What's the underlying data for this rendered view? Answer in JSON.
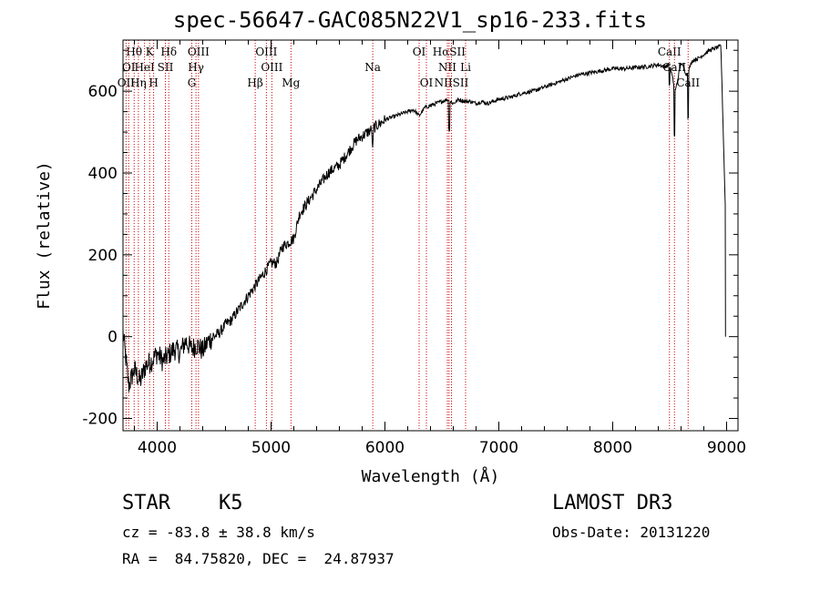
{
  "chart_data": {
    "type": "line",
    "title": "spec-56647-GAC085N22V1_sp16-233.fits",
    "xlabel": "Wavelength (Å)",
    "ylabel": "Flux (relative)",
    "xlim": [
      3700,
      9100
    ],
    "ylim": [
      -230,
      725
    ],
    "xticks": [
      4000,
      5000,
      6000,
      7000,
      8000,
      9000
    ],
    "yticks": [
      -200,
      0,
      200,
      400,
      600
    ],
    "series": [
      {
        "name": "flux",
        "x": [
          3700,
          3750,
          3800,
          3850,
          3900,
          3950,
          4000,
          4050,
          4100,
          4150,
          4200,
          4250,
          4300,
          4350,
          4400,
          4450,
          4500,
          4550,
          4600,
          4650,
          4700,
          4750,
          4800,
          4850,
          4900,
          4950,
          5000,
          5050,
          5100,
          5150,
          5200,
          5250,
          5300,
          5350,
          5400,
          5450,
          5500,
          5550,
          5600,
          5650,
          5700,
          5750,
          5800,
          5850,
          5900,
          5950,
          6000,
          6050,
          6100,
          6150,
          6200,
          6250,
          6300,
          6350,
          6400,
          6450,
          6500,
          6550,
          6600,
          6650,
          6700,
          6750,
          6800,
          6850,
          6900,
          6950,
          7000,
          7100,
          7200,
          7300,
          7400,
          7500,
          7600,
          7700,
          7800,
          7900,
          8000,
          8100,
          8200,
          8300,
          8400,
          8450,
          8500,
          8550,
          8600,
          8650,
          8700,
          8750,
          8800,
          8850,
          8900,
          8950,
          8990
        ],
        "values": [
          10,
          -120,
          -80,
          -110,
          -70,
          -60,
          -40,
          -60,
          -45,
          -30,
          -40,
          -10,
          -30,
          -20,
          -35,
          -10,
          0,
          10,
          30,
          40,
          60,
          80,
          100,
          120,
          140,
          160,
          180,
          180,
          220,
          230,
          240,
          300,
          320,
          340,
          360,
          380,
          400,
          410,
          420,
          440,
          460,
          480,
          490,
          500,
          510,
          520,
          530,
          535,
          540,
          545,
          550,
          555,
          540,
          560,
          565,
          570,
          575,
          580,
          570,
          580,
          575,
          575,
          570,
          575,
          570,
          575,
          580,
          585,
          595,
          600,
          610,
          620,
          630,
          640,
          645,
          650,
          655,
          655,
          658,
          660,
          665,
          660,
          665,
          600,
          670,
          640,
          675,
          680,
          690,
          700,
          705,
          710,
          300
        ]
      }
    ],
    "lines": [
      {
        "label": "Hθ",
        "x": 3798,
        "row": 0
      },
      {
        "label": "K",
        "x": 3934,
        "row": 0
      },
      {
        "label": "Hδ",
        "x": 4102,
        "row": 0
      },
      {
        "label": "OIII",
        "x": 4363,
        "row": 0
      },
      {
        "label": "OIII",
        "x": 4959,
        "row": 0
      },
      {
        "label": "OI",
        "x": 6300,
        "row": 0
      },
      {
        "label": "HαSII",
        "x": 6563,
        "row": 0
      },
      {
        "label": "CaII",
        "x": 8498,
        "row": 0
      },
      {
        "label": "OI",
        "x": 3750,
        "row": 1
      },
      {
        "label": "HeI",
        "x": 3889,
        "row": 1
      },
      {
        "label": "SII",
        "x": 4072,
        "row": 1
      },
      {
        "label": "Hγ",
        "x": 4341,
        "row": 1
      },
      {
        "label": "OIII",
        "x": 5007,
        "row": 1
      },
      {
        "label": "Na",
        "x": 5893,
        "row": 1
      },
      {
        "label": "NII",
        "x": 6548,
        "row": 1
      },
      {
        "label": "Li",
        "x": 6708,
        "row": 1
      },
      {
        "label": "CaII",
        "x": 8542,
        "row": 1
      },
      {
        "label": "OII",
        "x": 3727,
        "row": 2
      },
      {
        "label": "Hη",
        "x": 3835,
        "row": 2
      },
      {
        "label": "H",
        "x": 3969,
        "row": 2
      },
      {
        "label": "G",
        "x": 4304,
        "row": 2
      },
      {
        "label": "Hβ",
        "x": 4861,
        "row": 2
      },
      {
        "label": "Mg",
        "x": 5175,
        "row": 2
      },
      {
        "label": "OI",
        "x": 6364,
        "row": 2
      },
      {
        "label": "NIISII",
        "x": 6584,
        "row": 2
      },
      {
        "label": "CaII",
        "x": 8662,
        "row": 2
      }
    ],
    "line_color": "#cc0000"
  },
  "info": {
    "object_class": "STAR",
    "subclass": "K5",
    "survey": "LAMOST DR3",
    "redshift": "cz = -83.8 ± 38.8 km/s",
    "obs_date": "Obs-Date: 20131220",
    "coords": "RA =  84.75820, DEC =  24.87937"
  }
}
